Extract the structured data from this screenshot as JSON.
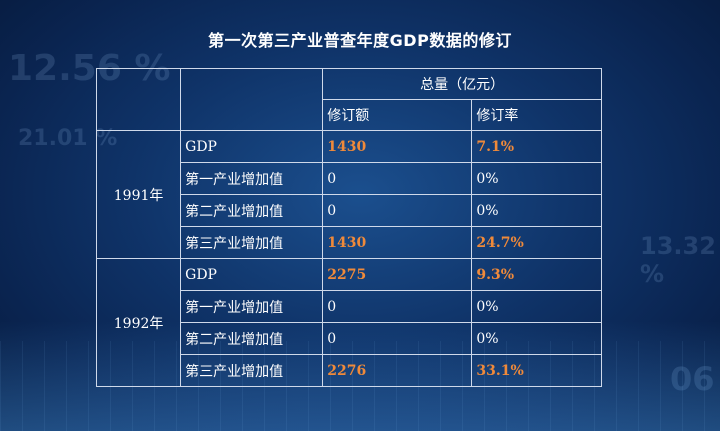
{
  "background": {
    "decor_numbers": [
      "12.56 %",
      "21.01 %",
      "13.32 %",
      "06"
    ]
  },
  "title": "第一次第三产业普查年度GDP数据的修订",
  "header": {
    "group": "总量（亿元）",
    "col_amount": "修订额",
    "col_rate": "修订率"
  },
  "colors": {
    "highlight": "#f08a3a",
    "text": "#ffffff",
    "border": "#cfd9ea"
  },
  "groups": [
    {
      "year": "1991年",
      "rows": [
        {
          "label": "GDP",
          "amount": "1430",
          "rate": "7.1%"
        },
        {
          "label": "第一产业增加值",
          "amount": "0",
          "rate": "0%"
        },
        {
          "label": "第二产业增加值",
          "amount": "0",
          "rate": "0%"
        },
        {
          "label": "第三产业增加值",
          "amount": "1430",
          "rate": "24.7%"
        }
      ]
    },
    {
      "year": "1992年",
      "rows": [
        {
          "label": "GDP",
          "amount": "2275",
          "rate": "9.3%"
        },
        {
          "label": "第一产业增加值",
          "amount": "0",
          "rate": "0%"
        },
        {
          "label": "第二产业增加值",
          "amount": "0",
          "rate": "0%"
        },
        {
          "label": "第三产业增加值",
          "amount": "2276",
          "rate": "33.1%"
        }
      ]
    }
  ]
}
